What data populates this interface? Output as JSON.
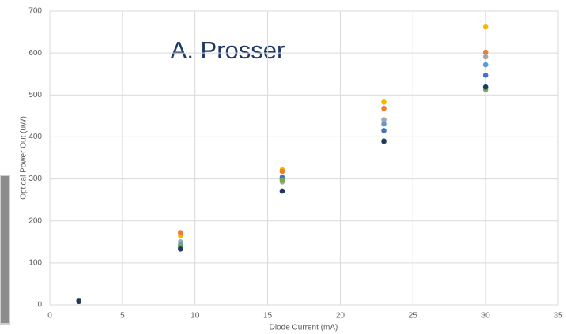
{
  "chart_data": {
    "type": "scatter",
    "annotation": "A. Prosser",
    "x_label": "Diode Current (mA)",
    "y_label": "Optical Power Out (uW)",
    "x": [
      2,
      9,
      16,
      23,
      30
    ],
    "series": [
      {
        "color": "#f5b800",
        "values": [
          11,
          165,
          322,
          483,
          662
        ]
      },
      {
        "color": "#ed7d31",
        "values": [
          10,
          172,
          318,
          468,
          602
        ]
      },
      {
        "color": "#a5a5a5",
        "values": [
          10,
          150,
          293,
          441,
          591
        ]
      },
      {
        "color": "#5b9bd5",
        "values": [
          9,
          143,
          300,
          431,
          572
        ]
      },
      {
        "color": "#4472c4",
        "values": [
          9,
          137,
          304,
          415,
          547
        ]
      },
      {
        "color": "#70ad47",
        "values": [
          9,
          140,
          297,
          388,
          513
        ]
      },
      {
        "color": "#1f3864",
        "values": [
          8,
          133,
          271,
          390,
          519
        ]
      }
    ],
    "xlim": [
      0,
      35
    ],
    "xticks": [
      0,
      5,
      10,
      15,
      20,
      25,
      30,
      35
    ],
    "ylim": [
      0,
      700
    ],
    "yticks": [
      0,
      100,
      200,
      300,
      400,
      500,
      600,
      700
    ],
    "grid": true
  }
}
